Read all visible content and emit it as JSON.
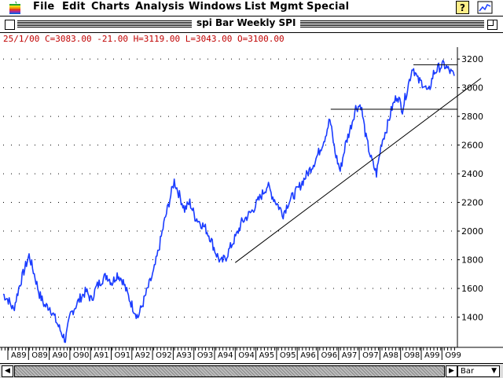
{
  "menubar": {
    "apple_icon": "apple-icon",
    "items": [
      "File",
      "Edit",
      "Charts",
      "Analysis",
      "Windows",
      "List Mgmt",
      "Special"
    ],
    "help_icon": "help-icon",
    "app_icon": "app-icon"
  },
  "window": {
    "title": "spi Bar Weekly SPI"
  },
  "quote_line": "25/1/00 C=3083.00 -21.00 H=3119.00 L=3043.00 O=3100.00",
  "colors": {
    "price": "#1a3cff",
    "quote_text": "#c00000",
    "grid_dot": "#000000",
    "trendline": "#000000"
  },
  "bottom_bar": {
    "period_value": "Bar",
    "scroll_left_icon": "left-arrow-icon",
    "scroll_right_icon": "right-arrow-icon"
  },
  "chart_data": {
    "type": "line",
    "series": [
      {
        "values": [
          1560,
          1520,
          1450,
          1600,
          1720,
          1830,
          1700,
          1560,
          1480,
          1470,
          1390,
          1310,
          1240,
          1420,
          1480,
          1540,
          1580,
          1520,
          1610,
          1660,
          1690,
          1640,
          1700,
          1660,
          1560,
          1470,
          1400,
          1500,
          1610,
          1710,
          1870,
          2050,
          2200,
          2350,
          2250,
          2150,
          2200,
          2100,
          2060,
          2020,
          1950,
          1850,
          1780,
          1820,
          1900,
          1970,
          2060,
          2100,
          2140,
          2200,
          2260,
          2320,
          2240,
          2180,
          2120,
          2200,
          2250,
          2300,
          2360,
          2420,
          2480,
          2560,
          2650,
          2780,
          2550,
          2420,
          2600,
          2720,
          2860,
          2880,
          2650,
          2500,
          2400,
          2620,
          2720,
          2860,
          2950,
          2850,
          3000,
          3150,
          3050,
          3030,
          2960,
          3100,
          3140,
          3160,
          3120,
          3083
        ]
      }
    ],
    "x_labels": [
      "A89",
      "O89",
      "A90",
      "O90",
      "A91",
      "O91",
      "A92",
      "O92",
      "A93",
      "O93",
      "A94",
      "O94",
      "A95",
      "O95",
      "A96",
      "O96",
      "A97",
      "O97",
      "A98",
      "O98",
      "A99",
      "O99"
    ],
    "y_ticks": [
      1400,
      1600,
      1800,
      2000,
      2200,
      2400,
      2600,
      2800,
      3000,
      3200
    ],
    "ylim": [
      1200,
      3250
    ],
    "annotations": {
      "trendline": {
        "from": {
          "x_label": "O94",
          "y": 1780
        },
        "to": {
          "x_label": "O99",
          "y": 3000
        }
      },
      "resistance": {
        "y": 3160,
        "from_label": "A99",
        "to_label": "O99"
      },
      "support": {
        "y": 2850,
        "from_label": "A97",
        "to_label": "O99"
      }
    }
  }
}
